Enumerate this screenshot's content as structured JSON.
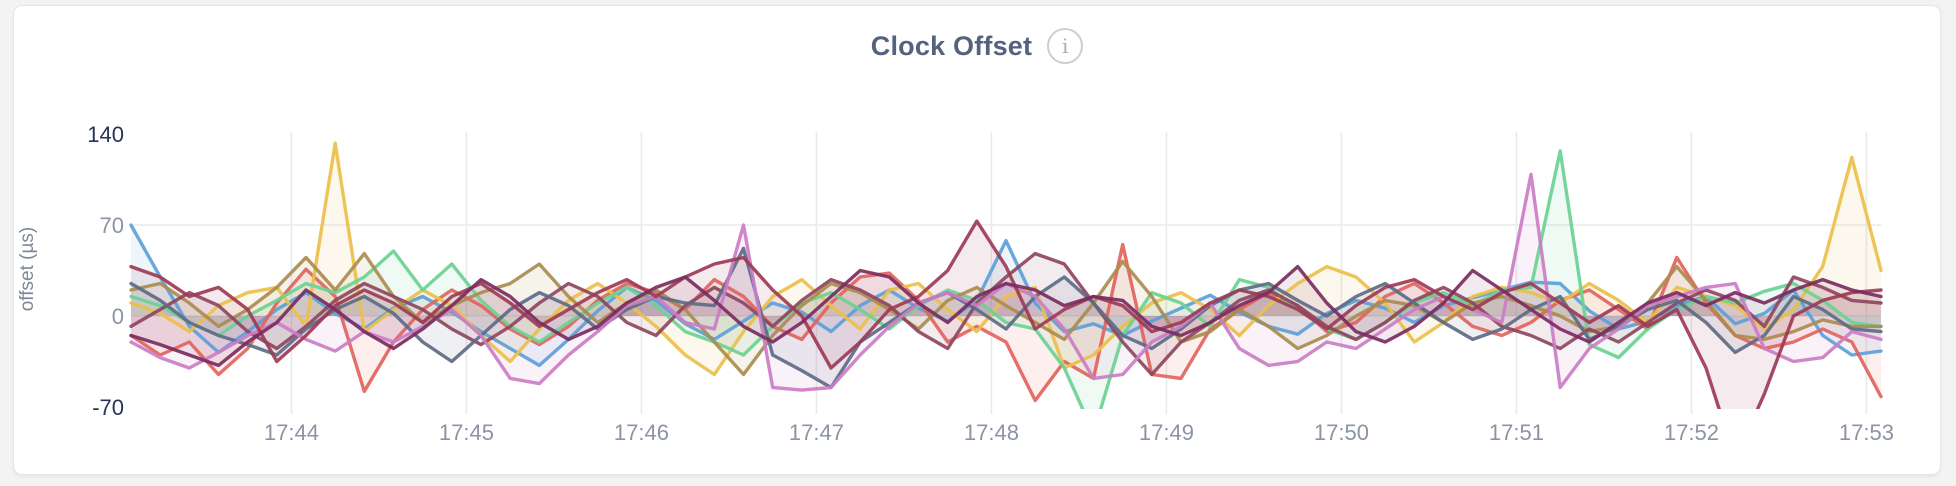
{
  "header": {
    "title": "Clock Offset",
    "info_icon_glyph": "i"
  },
  "colors": {
    "page_background": "#f3f3f4",
    "card_background": "#ffffff",
    "card_border": "#e4e5e6",
    "title_text": "#54627e",
    "gridline": "#e9eaec",
    "tick_label_muted": "#8b94a4",
    "tick_label_strong": "#253457",
    "axis_title": "#7e8896"
  },
  "chart_data": {
    "type": "line",
    "title": "Clock Offset",
    "xlabel": "",
    "ylabel": "offset (µs)",
    "ylim": [
      -70,
      140
    ],
    "grid": true,
    "legend_position": "none",
    "x_unit": "seconds after 17:43:00",
    "x_domain_seconds": [
      5,
      605
    ],
    "sample_interval_seconds": 10,
    "x_ticks": [
      {
        "label": "17:44",
        "seconds": 60
      },
      {
        "label": "17:45",
        "seconds": 120
      },
      {
        "label": "17:46",
        "seconds": 180
      },
      {
        "label": "17:47",
        "seconds": 240
      },
      {
        "label": "17:48",
        "seconds": 300
      },
      {
        "label": "17:49",
        "seconds": 360
      },
      {
        "label": "17:50",
        "seconds": 420
      },
      {
        "label": "17:51",
        "seconds": 480
      },
      {
        "label": "17:52",
        "seconds": 540
      },
      {
        "label": "17:53",
        "seconds": 600
      }
    ],
    "y_ticks": [
      {
        "label": "140",
        "value": 140,
        "strong": true,
        "gridline": false
      },
      {
        "label": "70",
        "value": 70,
        "strong": false,
        "gridline": true
      },
      {
        "label": "0",
        "value": 0,
        "strong": false,
        "gridline": true
      },
      {
        "label": "-70",
        "value": -70,
        "strong": true,
        "gridline": false
      }
    ],
    "series": [
      {
        "name": "series-1-blue",
        "color": "#5d9fd8",
        "values": [
          70,
          30,
          -8,
          -28,
          -12,
          5,
          18,
          2,
          -10,
          6,
          15,
          3,
          -12,
          -25,
          -38,
          -18,
          4,
          22,
          12,
          -6,
          -18,
          -4,
          10,
          3,
          -12,
          8,
          20,
          6,
          -4,
          12,
          58,
          10,
          -12,
          -6,
          -15,
          -4,
          6,
          16,
          3,
          -8,
          -14,
          2,
          12,
          6,
          -5,
          8,
          14,
          20,
          26,
          25,
          4,
          -10,
          -4,
          8,
          15,
          -6,
          2,
          20,
          -15,
          -30,
          -27
        ]
      },
      {
        "name": "series-2-coral",
        "color": "#e2645c",
        "values": [
          -15,
          -30,
          -20,
          -45,
          -25,
          10,
          36,
          15,
          -58,
          -20,
          5,
          20,
          8,
          -10,
          -22,
          -8,
          12,
          25,
          18,
          5,
          28,
          15,
          -8,
          -18,
          10,
          30,
          33,
          12,
          -20,
          -8,
          -20,
          -65,
          -35,
          -48,
          55,
          -45,
          -48,
          -10,
          5,
          18,
          8,
          -12,
          -5,
          15,
          25,
          10,
          -8,
          -15,
          -5,
          12,
          20,
          5,
          -10,
          45,
          10,
          -15,
          -25,
          -20,
          -10,
          -20,
          -62
        ]
      },
      {
        "name": "series-3-gold",
        "color": "#ecbf4a",
        "values": [
          10,
          2,
          -12,
          8,
          18,
          22,
          -8,
          133,
          -12,
          5,
          20,
          8,
          -15,
          -35,
          -10,
          12,
          25,
          10,
          -8,
          -30,
          -45,
          -12,
          15,
          28,
          8,
          -10,
          20,
          25,
          5,
          -12,
          15,
          22,
          -40,
          -30,
          -8,
          10,
          18,
          5,
          -15,
          8,
          25,
          38,
          30,
          10,
          -20,
          -5,
          15,
          22,
          18,
          10,
          25,
          12,
          -5,
          22,
          15,
          8,
          -10,
          5,
          38,
          122,
          35
        ]
      },
      {
        "name": "series-4-mint",
        "color": "#6bd193",
        "values": [
          15,
          8,
          -5,
          -15,
          0,
          12,
          25,
          18,
          30,
          50,
          20,
          40,
          12,
          -8,
          -20,
          -5,
          10,
          22,
          8,
          -12,
          -20,
          -30,
          -8,
          10,
          18,
          5,
          -10,
          8,
          20,
          12,
          -5,
          -10,
          -40,
          -90,
          -15,
          18,
          10,
          -8,
          28,
          22,
          5,
          -10,
          -18,
          -5,
          10,
          18,
          8,
          20,
          22,
          127,
          -22,
          -32,
          -10,
          5,
          15,
          10,
          19,
          25,
          12,
          -5,
          -8
        ]
      },
      {
        "name": "series-5-bronze",
        "color": "#aa8c4f",
        "values": [
          20,
          25,
          10,
          -8,
          5,
          22,
          45,
          20,
          48,
          15,
          -5,
          8,
          18,
          25,
          40,
          15,
          -5,
          10,
          20,
          5,
          -20,
          -45,
          -15,
          8,
          25,
          18,
          5,
          -10,
          12,
          22,
          8,
          -5,
          -18,
          10,
          42,
          15,
          -20,
          -12,
          5,
          -8,
          -25,
          -15,
          0,
          12,
          8,
          -5,
          10,
          15,
          8,
          0,
          -12,
          -8,
          10,
          38,
          12,
          -15,
          -18,
          -12,
          -3,
          -8,
          -8
        ]
      },
      {
        "name": "series-6-maroon",
        "color": "#8e4660",
        "values": [
          -8,
          5,
          18,
          8,
          -12,
          -25,
          -8,
          12,
          25,
          15,
          5,
          -10,
          -22,
          -8,
          10,
          25,
          15,
          -5,
          -15,
          8,
          22,
          10,
          -8,
          12,
          28,
          20,
          8,
          -12,
          -25,
          10,
          30,
          48,
          40,
          10,
          -20,
          -45,
          -20,
          -5,
          12,
          20,
          8,
          -8,
          -18,
          -5,
          12,
          22,
          10,
          -8,
          -15,
          -25,
          -10,
          -20,
          -5,
          10,
          20,
          12,
          -8,
          30,
          22,
          12,
          10
        ]
      },
      {
        "name": "series-7-slate",
        "color": "#5d6b86",
        "values": [
          25,
          12,
          -5,
          -15,
          -22,
          -30,
          -10,
          5,
          15,
          2,
          -20,
          -35,
          -15,
          5,
          18,
          8,
          -10,
          5,
          15,
          10,
          8,
          52,
          -30,
          -42,
          -55,
          -20,
          -5,
          10,
          18,
          5,
          -10,
          15,
          30,
          10,
          -15,
          -25,
          -10,
          8,
          20,
          25,
          12,
          0,
          15,
          25,
          10,
          -5,
          -18,
          -10,
          5,
          15,
          -18,
          -8,
          5,
          12,
          -5,
          -28,
          -15,
          15,
          5,
          -10,
          -12
        ]
      },
      {
        "name": "series-8-orchid",
        "color": "#cb7dc6",
        "values": [
          -20,
          -32,
          -40,
          -28,
          -15,
          -5,
          -18,
          -27,
          -12,
          -20,
          -8,
          5,
          -15,
          -48,
          -52,
          -30,
          -12,
          8,
          15,
          -5,
          -10,
          70,
          -55,
          -57,
          -55,
          -30,
          -8,
          10,
          18,
          8,
          25,
          15,
          -10,
          -48,
          -45,
          -20,
          -8,
          10,
          -25,
          -38,
          -35,
          -20,
          -25,
          -10,
          5,
          15,
          5,
          -5,
          109,
          -55,
          -25,
          -10,
          8,
          15,
          22,
          25,
          -25,
          -35,
          -32,
          -12,
          -18
        ]
      },
      {
        "name": "series-9-burgundy",
        "color": "#9d3b56",
        "values": [
          38,
          30,
          15,
          22,
          5,
          -35,
          -15,
          8,
          20,
          10,
          -5,
          15,
          25,
          10,
          -8,
          5,
          18,
          28,
          15,
          30,
          40,
          45,
          20,
          0,
          -40,
          -20,
          5,
          15,
          35,
          73,
          38,
          -10,
          5,
          15,
          8,
          -12,
          -5,
          10,
          20,
          15,
          5,
          -10,
          8,
          22,
          28,
          15,
          5,
          18,
          25,
          10,
          -5,
          8,
          -8,
          5,
          -40,
          -110,
          -60,
          0,
          12,
          18,
          20
        ]
      },
      {
        "name": "series-10-plum",
        "color": "#7b2d60",
        "values": [
          -15,
          -22,
          -30,
          -38,
          -20,
          -5,
          20,
          5,
          -12,
          -25,
          -10,
          8,
          28,
          15,
          -5,
          -18,
          -8,
          10,
          22,
          30,
          12,
          -8,
          -20,
          -5,
          15,
          35,
          30,
          10,
          -5,
          15,
          25,
          20,
          8,
          15,
          12,
          -8,
          -15,
          -5,
          8,
          18,
          38,
          10,
          -12,
          -20,
          -8,
          10,
          35,
          20,
          5,
          -10,
          -20,
          -5,
          10,
          18,
          8,
          18,
          10,
          20,
          28,
          20,
          15
        ]
      }
    ]
  }
}
